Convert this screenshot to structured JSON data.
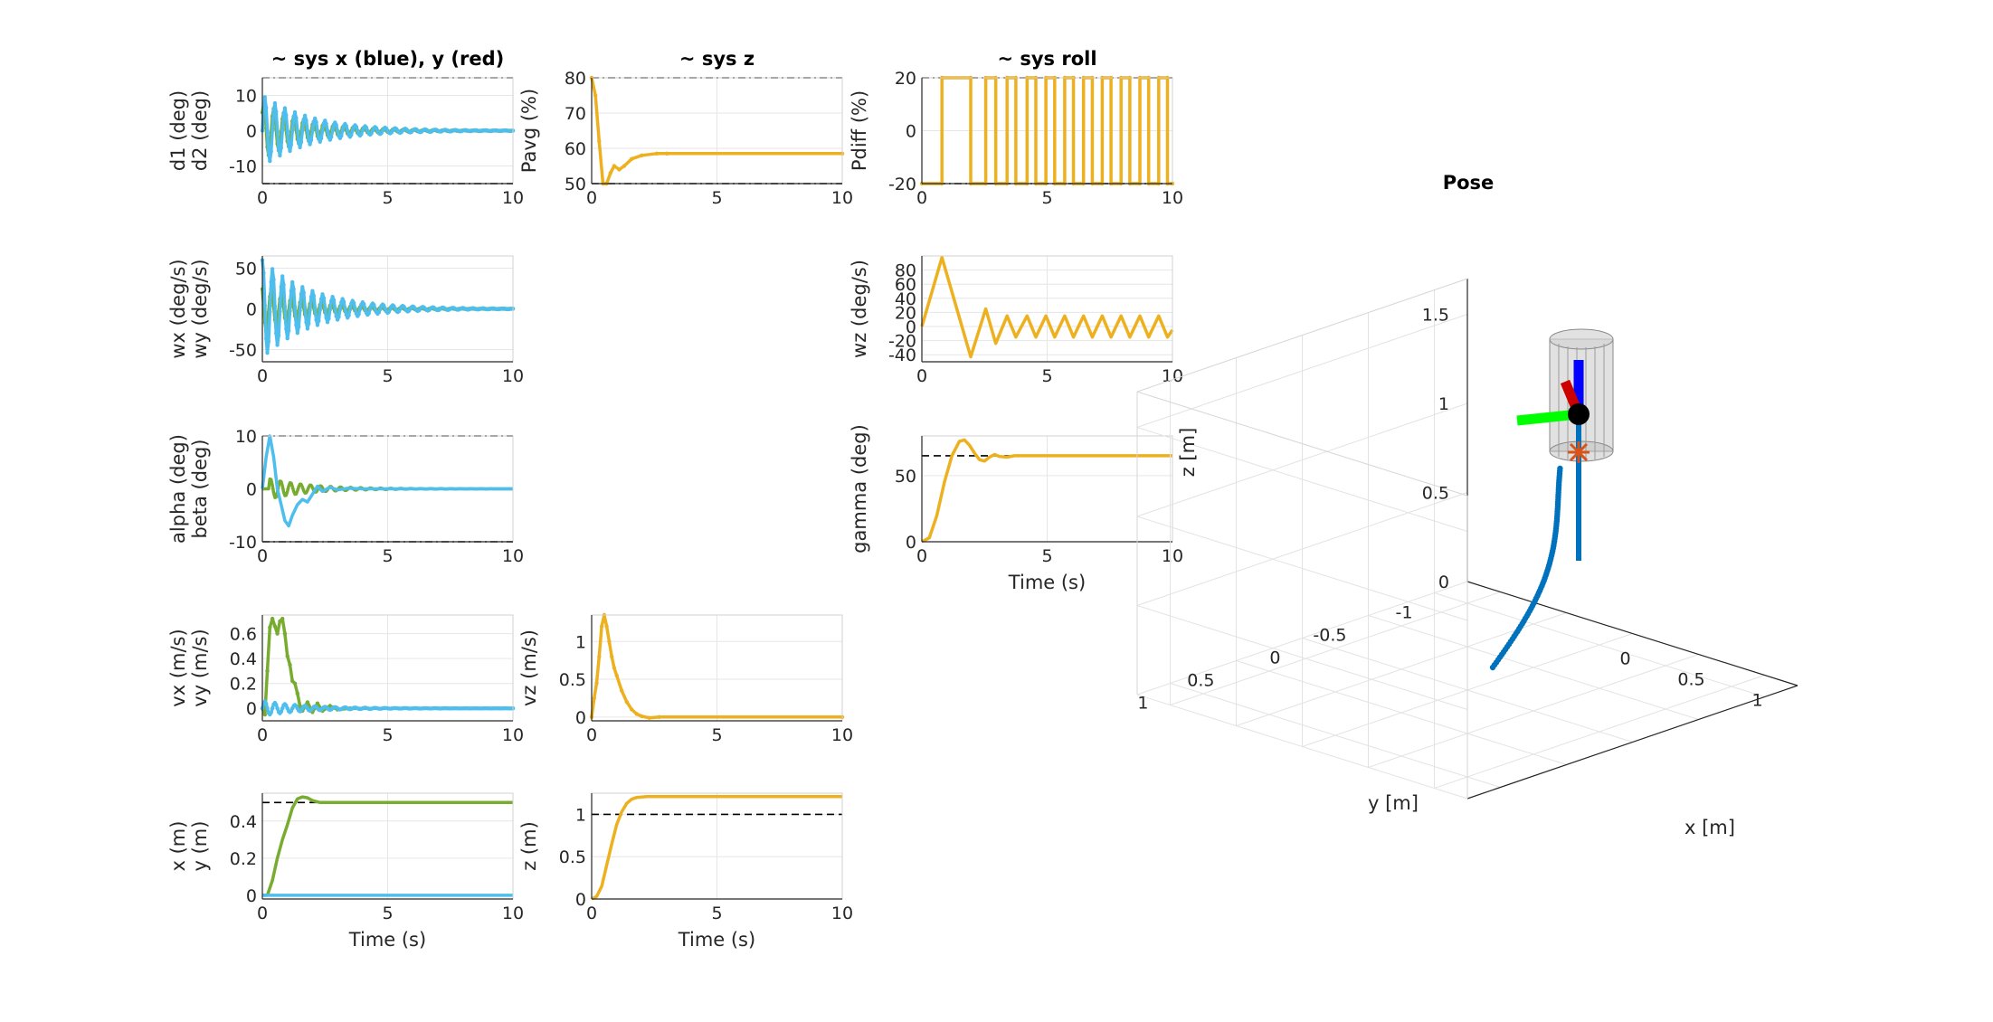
{
  "figure": {
    "colors": {
      "blue_light": "#4DBEEE",
      "green": "#77AC30",
      "yellow": "#EDB120",
      "pose_trajectory": "#0072BD",
      "pose_marker": "#D95319"
    },
    "pose_title": "Pose",
    "pose_xlabel": "x [m]",
    "pose_ylabel": "y [m]",
    "pose_zlabel": "z [m]",
    "pose_x_ticks": [
      "0",
      "0.5",
      "1"
    ],
    "pose_y_ticks": [
      "-1",
      "-0.5",
      "0",
      "0.5",
      "1"
    ],
    "pose_z_ticks": [
      "0",
      "0.5",
      "1",
      "1.5"
    ]
  },
  "chart_data": [
    {
      "id": "d",
      "type": "line",
      "title": "~ sys x (blue), y (red)",
      "ylabel": [
        "d1 (deg)",
        "d2 (deg)"
      ],
      "xlabel": "",
      "xlim": [
        0,
        10
      ],
      "ylim": [
        -15,
        15
      ],
      "yticks": [
        -10,
        0,
        10
      ],
      "xticks": [
        0,
        5,
        10
      ],
      "hlines": [
        15,
        -15
      ],
      "hline_style": "dashdot",
      "series": [
        {
          "color": "green",
          "kind": "osc",
          "params": {
            "amp": 8,
            "decay": 0.55,
            "freq": 2.5,
            "phase": 0.7,
            "start": 0,
            "offset": 0
          },
          "marker": true
        },
        {
          "color": "blue_light",
          "kind": "osc",
          "params": {
            "amp": 10,
            "decay": 0.5,
            "freq": 2.5,
            "phase": 0,
            "start": 0,
            "offset": 0
          },
          "marker": true
        }
      ]
    },
    {
      "id": "pavg",
      "type": "line",
      "title": "~ sys z",
      "ylabel": [
        "Pavg (%)"
      ],
      "xlabel": "",
      "xlim": [
        0,
        10
      ],
      "ylim": [
        50,
        80
      ],
      "yticks": [
        50,
        60,
        70,
        80
      ],
      "xticks": [
        0,
        5,
        10
      ],
      "hlines": [
        80,
        50
      ],
      "hline_style": "dashdot",
      "series": [
        {
          "color": "yellow",
          "marker": true,
          "points": [
            [
              0,
              80
            ],
            [
              0.15,
              75
            ],
            [
              0.3,
              62
            ],
            [
              0.45,
              50
            ],
            [
              0.6,
              50
            ],
            [
              0.75,
              53
            ],
            [
              0.9,
              55
            ],
            [
              1.1,
              54
            ],
            [
              1.3,
              55
            ],
            [
              1.6,
              57
            ],
            [
              2,
              58
            ],
            [
              2.6,
              58.5
            ],
            [
              3,
              58.5
            ],
            [
              10,
              58.5
            ]
          ]
        }
      ]
    },
    {
      "id": "pdiff",
      "type": "line",
      "title": "~ sys roll",
      "ylabel": [
        "Pdiff (%)"
      ],
      "xlabel": "",
      "xlim": [
        0,
        10
      ],
      "ylim": [
        -20,
        20
      ],
      "yticks": [
        -20,
        0,
        20
      ],
      "xticks": [
        0,
        5,
        10
      ],
      "hlines": [
        20,
        -20
      ],
      "hline_style": "dashdot",
      "series": [
        {
          "color": "yellow",
          "kind": "square",
          "marker": true,
          "params": {
            "switches": [
              0,
              0.8,
              1.95,
              2.55,
              2.95,
              3.4,
              3.75,
              4.2,
              4.55,
              4.95,
              5.3,
              5.7,
              6.05,
              6.45,
              6.8,
              7.2,
              7.55,
              7.95,
              8.3,
              8.7,
              9.05,
              9.45,
              9.8,
              10
            ],
            "levels": [
              -20,
              20,
              -20,
              20,
              -20,
              20,
              -20,
              20,
              -20,
              20,
              -20,
              20,
              -20,
              20,
              -20,
              20,
              -20,
              20,
              -20,
              20,
              -20,
              20,
              -20
            ]
          }
        }
      ]
    },
    {
      "id": "w",
      "type": "line",
      "title": "",
      "ylabel": [
        "wx (deg/s)",
        "wy (deg/s)"
      ],
      "xlabel": "",
      "xlim": [
        0,
        10
      ],
      "ylim": [
        -65,
        65
      ],
      "yticks": [
        -50,
        0,
        50
      ],
      "xticks": [
        0,
        5,
        10
      ],
      "hlines": [],
      "hline_style": "",
      "series": [
        {
          "color": "green",
          "kind": "osc",
          "params": {
            "amp": 30,
            "decay": 0.55,
            "freq": 2.5,
            "phase": 2.2,
            "start": 0,
            "offset": 0
          },
          "marker": true
        },
        {
          "color": "blue_light",
          "kind": "osc",
          "params": {
            "amp": 60,
            "decay": 0.5,
            "freq": 2.5,
            "phase": 1.5,
            "start": 0,
            "offset": 0
          },
          "marker": true
        }
      ]
    },
    {
      "id": "wz",
      "type": "line",
      "title": "",
      "ylabel": [
        "wz (deg/s)"
      ],
      "xlabel": "",
      "xlim": [
        0,
        10
      ],
      "ylim": [
        -50,
        100
      ],
      "yticks": [
        -40,
        -20,
        0,
        20,
        40,
        60,
        80
      ],
      "xticks": [
        0,
        5,
        10
      ],
      "hlines": [],
      "hline_style": "",
      "series": [
        {
          "color": "yellow",
          "marker": false,
          "points": [
            [
              0,
              0
            ],
            [
              0.8,
              98
            ],
            [
              1.95,
              -43
            ],
            [
              2.55,
              25
            ],
            [
              2.95,
              -24
            ],
            [
              3.4,
              15
            ],
            [
              3.75,
              -15
            ],
            [
              4.2,
              15
            ],
            [
              4.55,
              -15
            ],
            [
              4.95,
              15
            ],
            [
              5.3,
              -15
            ],
            [
              5.7,
              15
            ],
            [
              6.05,
              -15
            ],
            [
              6.45,
              15
            ],
            [
              6.8,
              -15
            ],
            [
              7.2,
              15
            ],
            [
              7.55,
              -15
            ],
            [
              7.95,
              15
            ],
            [
              8.3,
              -15
            ],
            [
              8.7,
              15
            ],
            [
              9.05,
              -15
            ],
            [
              9.45,
              15
            ],
            [
              9.8,
              -15
            ],
            [
              10,
              -5
            ]
          ]
        }
      ]
    },
    {
      "id": "ab",
      "type": "line",
      "title": "",
      "ylabel": [
        "alpha (deg)",
        "beta (deg)"
      ],
      "xlabel": "",
      "xlim": [
        0,
        10
      ],
      "ylim": [
        -10,
        10
      ],
      "yticks": [
        -10,
        0,
        10
      ],
      "xticks": [
        0,
        5,
        10
      ],
      "hlines": [
        10,
        -10
      ],
      "hline_style": "dashdot",
      "series": [
        {
          "color": "green",
          "kind": "osc",
          "params": {
            "amp": 2,
            "decay": 0.6,
            "freq": 2.5,
            "phase": 1.2,
            "start": 0.3,
            "offset": 0
          },
          "marker": false
        },
        {
          "color": "blue_light",
          "marker": false,
          "points": [
            [
              0,
              0
            ],
            [
              0.15,
              6
            ],
            [
              0.3,
              10
            ],
            [
              0.45,
              6
            ],
            [
              0.6,
              0
            ],
            [
              0.75,
              -3
            ],
            [
              0.9,
              -6
            ],
            [
              1.05,
              -7
            ],
            [
              1.2,
              -5
            ],
            [
              1.4,
              -3
            ],
            [
              1.6,
              -2
            ],
            [
              1.8,
              -2.5
            ],
            [
              2.0,
              -1
            ],
            [
              2.2,
              0.5
            ],
            [
              2.4,
              -0.5
            ],
            [
              2.7,
              0.3
            ],
            [
              3,
              -0.2
            ],
            [
              3.4,
              0.1
            ],
            [
              4,
              0
            ],
            [
              10,
              0
            ]
          ]
        }
      ]
    },
    {
      "id": "gamma",
      "type": "line",
      "title": "",
      "ylabel": [
        "gamma (deg)"
      ],
      "xlabel": "Time (s)",
      "xlim": [
        0,
        10
      ],
      "ylim": [
        0,
        80
      ],
      "yticks": [
        0,
        50
      ],
      "xticks": [
        0,
        5,
        10
      ],
      "hlines": [
        65
      ],
      "hline_style": "dashed",
      "series": [
        {
          "color": "yellow",
          "marker": false,
          "points": [
            [
              0,
              0
            ],
            [
              0.3,
              3
            ],
            [
              0.6,
              20
            ],
            [
              0.9,
              45
            ],
            [
              1.2,
              65
            ],
            [
              1.5,
              76
            ],
            [
              1.7,
              77
            ],
            [
              1.9,
              73
            ],
            [
              2.1,
              67
            ],
            [
              2.3,
              62
            ],
            [
              2.5,
              61
            ],
            [
              2.7,
              64
            ],
            [
              2.9,
              66
            ],
            [
              3.1,
              64.5
            ],
            [
              3.4,
              64
            ],
            [
              3.7,
              65
            ],
            [
              4.2,
              65
            ],
            [
              10,
              65
            ]
          ]
        }
      ]
    },
    {
      "id": "vxy",
      "type": "line",
      "title": "",
      "ylabel": [
        "vx (m/s)",
        "vy (m/s)"
      ],
      "xlabel": "",
      "xlim": [
        0,
        10
      ],
      "ylim": [
        -0.1,
        0.75
      ],
      "yticks": [
        0,
        0.2,
        0.4,
        0.6
      ],
      "xticks": [
        0,
        5,
        10
      ],
      "hlines": [],
      "hline_style": "",
      "series": [
        {
          "color": "green",
          "marker": true,
          "points": [
            [
              0,
              0
            ],
            [
              0.1,
              -0.05
            ],
            [
              0.2,
              0.3
            ],
            [
              0.3,
              0.65
            ],
            [
              0.4,
              0.72
            ],
            [
              0.5,
              0.66
            ],
            [
              0.6,
              0.6
            ],
            [
              0.7,
              0.7
            ],
            [
              0.8,
              0.72
            ],
            [
              0.9,
              0.6
            ],
            [
              1,
              0.42
            ],
            [
              1.1,
              0.35
            ],
            [
              1.2,
              0.22
            ],
            [
              1.3,
              0.2
            ],
            [
              1.4,
              0.12
            ],
            [
              1.5,
              0.02
            ],
            [
              1.6,
              -0.02
            ],
            [
              1.8,
              0.05
            ],
            [
              2,
              -0.03
            ],
            [
              2.2,
              0.04
            ],
            [
              2.4,
              -0.02
            ],
            [
              2.7,
              0.02
            ],
            [
              3,
              -0.01
            ],
            [
              3.5,
              0
            ],
            [
              10,
              0
            ]
          ]
        },
        {
          "color": "blue_light",
          "kind": "osc",
          "params": {
            "amp": 0.06,
            "decay": 0.6,
            "freq": 2.5,
            "phase": 0,
            "start": 0,
            "offset": 0
          },
          "marker": true
        }
      ]
    },
    {
      "id": "vz",
      "type": "line",
      "title": "",
      "ylabel": [
        "vz (m/s)"
      ],
      "xlabel": "",
      "xlim": [
        0,
        10
      ],
      "ylim": [
        -0.05,
        1.35
      ],
      "yticks": [
        0,
        0.5,
        1
      ],
      "xticks": [
        0,
        5,
        10
      ],
      "hlines": [],
      "hline_style": "",
      "series": [
        {
          "color": "yellow",
          "marker": true,
          "points": [
            [
              0,
              0
            ],
            [
              0.1,
              0.25
            ],
            [
              0.2,
              0.45
            ],
            [
              0.3,
              0.8
            ],
            [
              0.4,
              1.2
            ],
            [
              0.5,
              1.35
            ],
            [
              0.6,
              1.2
            ],
            [
              0.7,
              1.0
            ],
            [
              0.8,
              0.8
            ],
            [
              0.9,
              0.65
            ],
            [
              1,
              0.55
            ],
            [
              1.2,
              0.35
            ],
            [
              1.4,
              0.2
            ],
            [
              1.6,
              0.1
            ],
            [
              1.8,
              0.04
            ],
            [
              2,
              0.01
            ],
            [
              2.3,
              -0.01
            ],
            [
              2.7,
              0
            ],
            [
              10,
              0
            ]
          ]
        }
      ]
    },
    {
      "id": "xy",
      "type": "line",
      "title": "",
      "ylabel": [
        "x (m)",
        "y (m)"
      ],
      "xlabel": "Time (s)",
      "xlim": [
        0,
        10
      ],
      "ylim": [
        -0.02,
        0.55
      ],
      "yticks": [
        0,
        0.2,
        0.4
      ],
      "xticks": [
        0,
        5,
        10
      ],
      "hlines": [
        0.5,
        0
      ],
      "hline_style": "dashed",
      "series": [
        {
          "color": "green",
          "marker": false,
          "points": [
            [
              0,
              0
            ],
            [
              0.2,
              0.0
            ],
            [
              0.4,
              0.08
            ],
            [
              0.6,
              0.2
            ],
            [
              0.8,
              0.3
            ],
            [
              1,
              0.38
            ],
            [
              1.2,
              0.47
            ],
            [
              1.4,
              0.52
            ],
            [
              1.6,
              0.53
            ],
            [
              1.8,
              0.525
            ],
            [
              2,
              0.51
            ],
            [
              2.3,
              0.5
            ],
            [
              2.7,
              0.5
            ],
            [
              10,
              0.5
            ]
          ]
        },
        {
          "color": "blue_light",
          "marker": false,
          "points": [
            [
              0,
              0
            ],
            [
              10,
              0
            ]
          ]
        }
      ]
    },
    {
      "id": "z",
      "type": "line",
      "title": "",
      "ylabel": [
        "z (m)"
      ],
      "xlabel": "Time (s)",
      "xlim": [
        0,
        10
      ],
      "ylim": [
        0,
        1.25
      ],
      "yticks": [
        0,
        0.5,
        1
      ],
      "xticks": [
        0,
        5,
        10
      ],
      "hlines": [
        1
      ],
      "hline_style": "dashed",
      "series": [
        {
          "color": "yellow",
          "marker": false,
          "points": [
            [
              0,
              0
            ],
            [
              0.2,
              0.03
            ],
            [
              0.4,
              0.15
            ],
            [
              0.6,
              0.4
            ],
            [
              0.8,
              0.65
            ],
            [
              1,
              0.88
            ],
            [
              1.2,
              1.03
            ],
            [
              1.4,
              1.13
            ],
            [
              1.6,
              1.18
            ],
            [
              1.8,
              1.2
            ],
            [
              2.2,
              1.21
            ],
            [
              3,
              1.21
            ],
            [
              10,
              1.21
            ]
          ]
        }
      ]
    }
  ]
}
